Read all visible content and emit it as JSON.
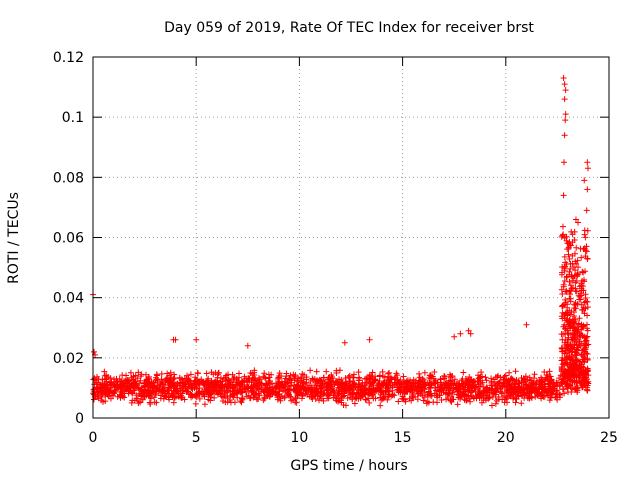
{
  "chart_data": {
    "type": "scatter",
    "title": "Day 059 of 2019, Rate Of TEC Index for receiver brst",
    "xlabel": "GPS time / hours",
    "ylabel": "ROTI / TECUs",
    "xlim": [
      0,
      25
    ],
    "ylim": [
      0,
      0.12
    ],
    "x_ticks": [
      0,
      5,
      10,
      15,
      20,
      25
    ],
    "y_ticks": [
      0,
      0.02,
      0.04,
      0.06,
      0.08,
      0.1,
      0.12
    ],
    "x_tick_labels": [
      "0",
      "5",
      "10",
      "15",
      "20",
      "25"
    ],
    "y_tick_labels": [
      "0",
      "0.02",
      "0.04",
      "0.06",
      "0.08",
      "0.1",
      "0.12"
    ],
    "grid": true,
    "marker": "+",
    "color": "#ff0000",
    "series": [
      {
        "name": "ROTI",
        "notable_points": [
          {
            "x": 0.0,
            "y": 0.041
          },
          {
            "x": 0.05,
            "y": 0.022
          },
          {
            "x": 0.1,
            "y": 0.021
          },
          {
            "x": 3.9,
            "y": 0.026
          },
          {
            "x": 4.0,
            "y": 0.026
          },
          {
            "x": 5.0,
            "y": 0.026
          },
          {
            "x": 7.5,
            "y": 0.024
          },
          {
            "x": 12.2,
            "y": 0.025
          },
          {
            "x": 13.4,
            "y": 0.026
          },
          {
            "x": 17.5,
            "y": 0.027
          },
          {
            "x": 17.8,
            "y": 0.028
          },
          {
            "x": 18.2,
            "y": 0.029
          },
          {
            "x": 18.3,
            "y": 0.028
          },
          {
            "x": 21.0,
            "y": 0.031
          },
          {
            "x": 22.8,
            "y": 0.113
          },
          {
            "x": 22.85,
            "y": 0.111
          },
          {
            "x": 22.9,
            "y": 0.109
          },
          {
            "x": 22.85,
            "y": 0.106
          },
          {
            "x": 22.9,
            "y": 0.101
          },
          {
            "x": 22.88,
            "y": 0.099
          },
          {
            "x": 22.85,
            "y": 0.094
          },
          {
            "x": 22.82,
            "y": 0.085
          },
          {
            "x": 22.8,
            "y": 0.074
          },
          {
            "x": 23.4,
            "y": 0.066
          },
          {
            "x": 23.5,
            "y": 0.065
          },
          {
            "x": 23.8,
            "y": 0.079
          },
          {
            "x": 23.95,
            "y": 0.085
          },
          {
            "x": 23.98,
            "y": 0.083
          },
          {
            "x": 23.95,
            "y": 0.076
          },
          {
            "x": 23.92,
            "y": 0.069
          }
        ],
        "baseline_segments": [
          {
            "x_start": 0,
            "x_end": 22.7,
            "typical": 0.01,
            "spread": 0.005
          },
          {
            "x_start": 22.7,
            "x_end": 24.0,
            "typical": 0.02,
            "spread": 0.02
          }
        ]
      }
    ]
  }
}
